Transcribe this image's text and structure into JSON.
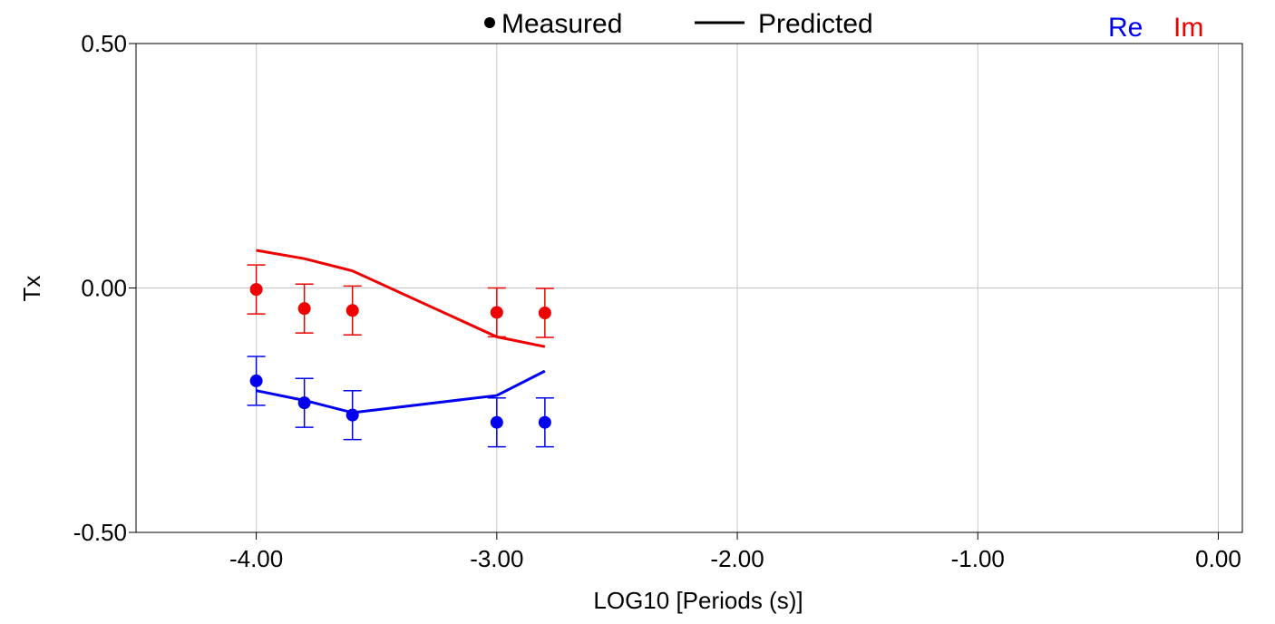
{
  "chart_data": {
    "type": "scatter",
    "xlabel": "LOG10 [Periods (s)]",
    "ylabel": "Tx",
    "xlim": [
      -4.5,
      0.1
    ],
    "ylim": [
      -0.5,
      0.5
    ],
    "x_ticks": [
      -4.0,
      -3.0,
      -2.0,
      -1.0,
      0.0
    ],
    "x_tick_labels": [
      "-4.00",
      "-3.00",
      "-2.00",
      "-1.00",
      "0.00"
    ],
    "y_ticks": [
      0.5,
      0.0,
      -0.5
    ],
    "y_tick_labels": [
      "0.50",
      "0.00",
      "-0.50"
    ],
    "grid": true,
    "legend": {
      "position": "top",
      "measured_label": "Measured",
      "predicted_label": "Predicted",
      "re_label": "Re",
      "im_label": "Im"
    },
    "colors": {
      "re": "#0000ee",
      "im": "#ee0000",
      "axis": "#000000",
      "grid": "#c8c8c8"
    },
    "series": [
      {
        "name": "Re",
        "color": "#0000ee",
        "measured": {
          "x": [
            -4.0,
            -3.8,
            -3.6,
            -3.0,
            -2.8
          ],
          "y": [
            -0.19,
            -0.235,
            -0.26,
            -0.275,
            -0.275
          ],
          "err": [
            0.05,
            0.05,
            0.05,
            0.05,
            0.05
          ]
        },
        "predicted": {
          "x": [
            -4.0,
            -3.8,
            -3.6,
            -3.0,
            -2.8
          ],
          "y": [
            -0.21,
            -0.23,
            -0.255,
            -0.22,
            -0.17
          ]
        }
      },
      {
        "name": "Im",
        "color": "#ee0000",
        "measured": {
          "x": [
            -4.0,
            -3.8,
            -3.6,
            -3.0,
            -2.8
          ],
          "y": [
            -0.003,
            -0.042,
            -0.046,
            -0.05,
            -0.051
          ],
          "err": [
            0.05,
            0.05,
            0.05,
            0.05,
            0.05
          ]
        },
        "predicted": {
          "x": [
            -4.0,
            -3.8,
            -3.6,
            -3.0,
            -2.8
          ],
          "y": [
            0.077,
            0.06,
            0.035,
            -0.1,
            -0.12
          ]
        }
      }
    ]
  }
}
